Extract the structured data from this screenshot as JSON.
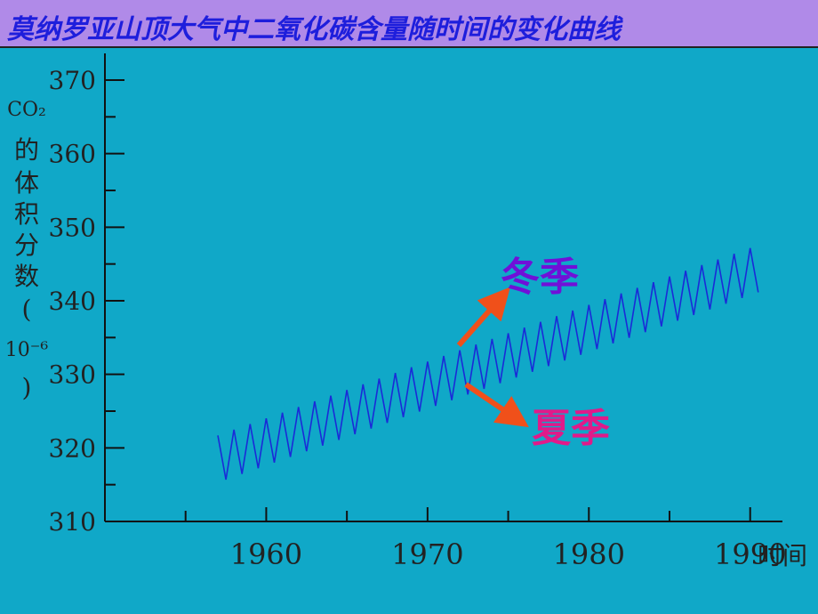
{
  "title": "莫纳罗亚山顶大气中二氧化碳含量随时间的变化曲线",
  "chart_data": {
    "type": "line",
    "ylabel": "CO2的体积分数(10⁻⁶)",
    "ylabel_chars": [
      "CO₂",
      "的",
      "体",
      "积",
      "分",
      "数",
      "(",
      "10⁻⁶",
      ")"
    ],
    "xlabel": "时间",
    "ylim": [
      310,
      370
    ],
    "xlim": [
      1950,
      1992
    ],
    "y_ticks": [
      310,
      320,
      330,
      340,
      350,
      360,
      370
    ],
    "x_ticks": [
      1960,
      1970,
      1980,
      1990
    ],
    "series": [
      {
        "color": "#1a2ad8",
        "start_year": 1957.0,
        "end_year": 1990.7,
        "points_summary": "seasonal sawtooth oscillation rising from ~320 in 1957 to ~345 in 1990",
        "trend_start": 318.5,
        "trend_end": 344.5,
        "amplitude": 3.2,
        "period_years": 1
      }
    ],
    "annotations": [
      {
        "text": "冬季",
        "color": "#7010d8"
      },
      {
        "text": "夏季",
        "color": "#e01a8a"
      }
    ],
    "arrow_color": "#f0501a"
  }
}
